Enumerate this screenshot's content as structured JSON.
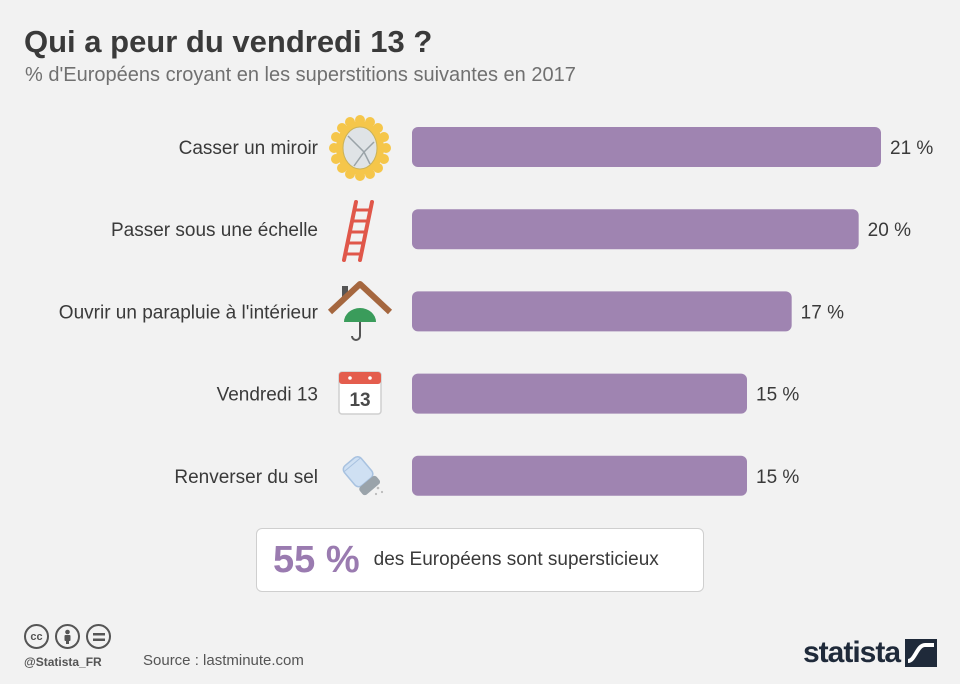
{
  "header": {
    "title": "Qui a peur du vendredi 13 ?",
    "subtitle": "% d'Européens croyant en les superstitions suivantes en 2017"
  },
  "colors": {
    "bar": "#9f84b1",
    "accent": "#9a7bb0"
  },
  "chart_data": {
    "type": "bar",
    "orientation": "horizontal",
    "title": "Qui a peur du vendredi 13 ?",
    "subtitle": "% d'Européens croyant en les superstitions suivantes en 2017",
    "categories": [
      "Casser un miroir",
      "Passer sous une échelle",
      "Ouvrir un parapluie à l'intérieur",
      "Vendredi 13",
      "Renverser du sel"
    ],
    "values": [
      21,
      20,
      17,
      15,
      15
    ],
    "value_labels": [
      "21 %",
      "20 %",
      "17 %",
      "15 %",
      "15 %"
    ],
    "icons": [
      "mirror-icon",
      "ladder-icon",
      "umbrella-house-icon",
      "calendar-13-icon",
      "salt-shaker-icon"
    ],
    "xlim": [
      0,
      21
    ],
    "grid": false,
    "legend": "none"
  },
  "callout": {
    "value": "55 %",
    "text": "des Européens sont supersticieux"
  },
  "calendar_number": "13",
  "footer": {
    "handle": "@Statista_FR",
    "source": "Source : lastminute.com",
    "brand": "statista",
    "license_icons": [
      "cc-icon",
      "by-icon",
      "nd-icon"
    ]
  }
}
